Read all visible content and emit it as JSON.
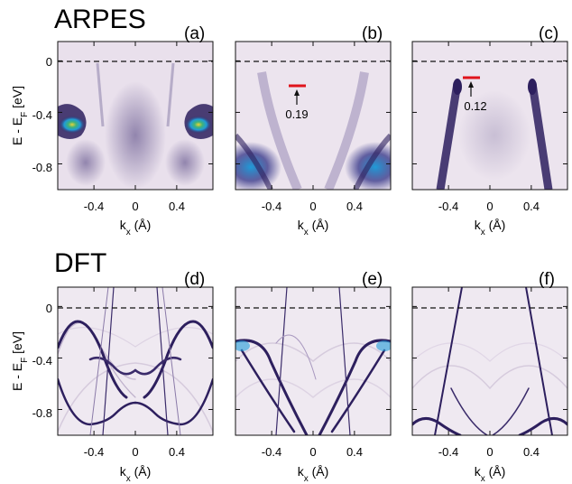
{
  "row_titles": [
    "ARPES",
    "DFT"
  ],
  "panels": [
    {
      "letter": "(a)",
      "source": "ARPES"
    },
    {
      "letter": "(b)",
      "source": "ARPES"
    },
    {
      "letter": "(c)",
      "source": "ARPES"
    },
    {
      "letter": "(d)",
      "source": "DFT"
    },
    {
      "letter": "(e)",
      "source": "DFT"
    },
    {
      "letter": "(f)",
      "source": "DFT"
    }
  ],
  "ylabel_main": "E - E",
  "ylabel_sub": "F",
  "ylabel_unit": " [eV]",
  "xlabel_main": "k",
  "xlabel_sub": "x",
  "xlabel_unit": " (Å)",
  "x_ticks": [
    "-0.4",
    "0",
    "0.4"
  ],
  "y_ticks": [
    "0",
    "-0.4",
    "-0.8"
  ],
  "annotations": [
    {
      "panel": "(b)",
      "text": "0.19"
    },
    {
      "panel": "(c)",
      "text": "0.12"
    }
  ],
  "colors": {
    "background_map": "#e9e0ec",
    "band": "#2d1f5e",
    "high_intensity": "#1f9bd8",
    "peak": "#e8d33a",
    "marker": "#e0141c"
  },
  "chart_data": [
    {
      "type": "heatmap",
      "panel": "(a)",
      "xlim": [
        -0.75,
        0.75
      ],
      "ylim": [
        -1.0,
        0.15
      ],
      "fermi_level": 0,
      "x_ticks": [
        -0.4,
        0,
        0.4
      ],
      "y_ticks": [
        0,
        -0.4,
        -0.8
      ]
    },
    {
      "type": "heatmap",
      "panel": "(b)",
      "xlim": [
        -0.75,
        0.75
      ],
      "ylim": [
        -1.0,
        0.15
      ],
      "fermi_level": 0,
      "marker_energy": -0.19
    },
    {
      "type": "heatmap",
      "panel": "(c)",
      "xlim": [
        -0.75,
        0.75
      ],
      "ylim": [
        -1.0,
        0.15
      ],
      "fermi_level": 0,
      "marker_energy": -0.12
    },
    {
      "type": "heatmap",
      "panel": "(d)",
      "xlim": [
        -0.75,
        0.75
      ],
      "ylim": [
        -1.0,
        0.15
      ],
      "fermi_level": 0
    },
    {
      "type": "heatmap",
      "panel": "(e)",
      "xlim": [
        -0.75,
        0.75
      ],
      "ylim": [
        -1.0,
        0.15
      ],
      "fermi_level": 0
    },
    {
      "type": "heatmap",
      "panel": "(f)",
      "xlim": [
        -0.75,
        0.75
      ],
      "ylim": [
        -1.0,
        0.15
      ],
      "fermi_level": 0
    }
  ]
}
